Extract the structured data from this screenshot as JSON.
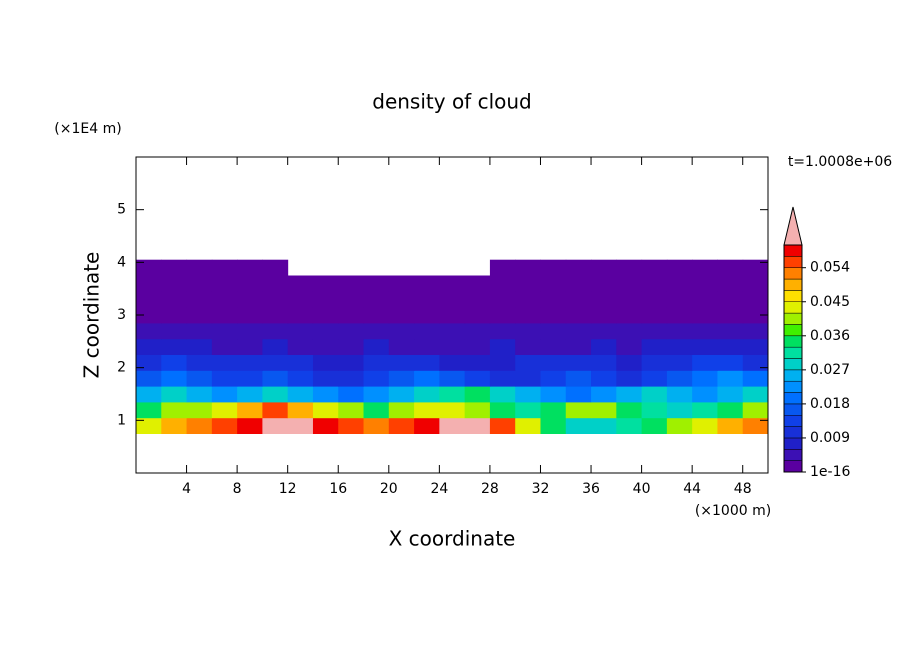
{
  "chart_data": {
    "type": "contour",
    "title": "density of cloud",
    "xlabel": "X coordinate",
    "ylabel": "Z coordinate",
    "x_unit": "(×1000 m)",
    "y_unit": "(×1E4 m)",
    "time_label": "t=1.0008e+06",
    "xlim": [
      0,
      50
    ],
    "ylim": [
      0,
      6
    ],
    "xticks": [
      4,
      8,
      12,
      16,
      20,
      24,
      28,
      32,
      36,
      40,
      44,
      48
    ],
    "yticks": [
      1,
      2,
      3,
      4,
      5
    ],
    "x": [
      1,
      3,
      5,
      7,
      9,
      11,
      13,
      15,
      17,
      19,
      21,
      23,
      25,
      27,
      29,
      31,
      33,
      35,
      37,
      39,
      41,
      43,
      45,
      47,
      49
    ],
    "y": [
      0.9,
      1.2,
      1.5,
      1.8,
      2.1,
      2.4,
      2.7,
      3.0,
      3.3,
      3.6,
      3.9
    ],
    "z": [
      [
        0.045,
        0.05,
        0.052,
        0.054,
        0.058,
        0.062,
        0.062,
        0.058,
        0.055,
        0.052,
        0.054,
        0.058,
        0.062,
        0.062,
        0.055,
        0.045,
        0.036,
        0.03,
        0.03,
        0.033,
        0.036,
        0.04,
        0.045,
        0.05,
        0.052
      ],
      [
        0.036,
        0.04,
        0.042,
        0.045,
        0.05,
        0.054,
        0.05,
        0.045,
        0.04,
        0.036,
        0.04,
        0.045,
        0.045,
        0.04,
        0.036,
        0.033,
        0.036,
        0.04,
        0.042,
        0.036,
        0.033,
        0.03,
        0.033,
        0.036,
        0.04
      ],
      [
        0.027,
        0.03,
        0.027,
        0.024,
        0.027,
        0.03,
        0.027,
        0.024,
        0.021,
        0.024,
        0.027,
        0.03,
        0.033,
        0.036,
        0.03,
        0.027,
        0.024,
        0.021,
        0.024,
        0.027,
        0.03,
        0.027,
        0.024,
        0.027,
        0.03
      ],
      [
        0.018,
        0.02,
        0.018,
        0.015,
        0.015,
        0.018,
        0.015,
        0.012,
        0.012,
        0.015,
        0.018,
        0.021,
        0.018,
        0.015,
        0.012,
        0.012,
        0.015,
        0.018,
        0.015,
        0.012,
        0.015,
        0.018,
        0.021,
        0.024,
        0.021
      ],
      [
        0.012,
        0.015,
        0.012,
        0.01,
        0.012,
        0.012,
        0.01,
        0.008,
        0.009,
        0.01,
        0.012,
        0.01,
        0.009,
        0.008,
        0.009,
        0.01,
        0.012,
        0.012,
        0.01,
        0.009,
        0.01,
        0.012,
        0.015,
        0.015,
        0.012
      ],
      [
        0.007,
        0.008,
        0.007,
        0.006,
        0.006,
        0.007,
        0.006,
        0.005,
        0.006,
        0.007,
        0.006,
        0.005,
        0.005,
        0.006,
        0.007,
        0.006,
        0.005,
        0.006,
        0.007,
        0.006,
        0.007,
        0.008,
        0.009,
        0.008,
        0.007
      ],
      [
        0.004,
        0.005,
        0.004,
        0.004,
        0.004,
        0.005,
        0.004,
        0.004,
        0.005,
        0.005,
        0.004,
        0.004,
        0.004,
        0.005,
        0.004,
        0.004,
        0.004,
        0.005,
        0.005,
        0.004,
        0.004,
        0.005,
        0.005,
        0.005,
        0.004
      ],
      [
        0.003,
        0.002,
        0.003,
        0.002,
        0.002,
        0.003,
        0.002,
        0.002,
        0.003,
        0.002,
        0.002,
        0.003,
        0.002,
        0.002,
        0.003,
        0.002,
        0.002,
        0.003,
        0.003,
        0.002,
        0.002,
        0.003,
        0.003,
        0.003,
        0.002
      ],
      [
        0.002,
        0.002,
        0.002,
        0.002,
        0.002,
        0.002,
        0.002,
        0.002,
        0.002,
        0.002,
        0.002,
        0.002,
        0.002,
        0.002,
        0.002,
        0.002,
        0.002,
        0.002,
        0.002,
        0.002,
        0.002,
        0.002,
        0.002,
        0.002,
        0.002
      ],
      [
        0.001,
        0.001,
        0.001,
        0.001,
        0.001,
        0.001,
        0.001,
        0.001,
        0.001,
        0.001,
        0.001,
        0.001,
        0.001,
        0.001,
        0.001,
        0.001,
        0.001,
        0.001,
        0.001,
        0.001,
        0.001,
        0.001,
        0.001,
        0.001,
        0.001
      ],
      [
        0.0005,
        0.0005,
        0.0005,
        0.0005,
        0.0005,
        0.0005,
        null,
        null,
        null,
        null,
        null,
        null,
        null,
        null,
        0.0005,
        0.0005,
        0.0005,
        0.0005,
        0.0005,
        0.0005,
        0.0005,
        0.0005,
        0.0005,
        0.0005,
        0.0005
      ]
    ],
    "colorbar": {
      "lim": [
        1e-16,
        0.06
      ],
      "ticks": [
        1e-16,
        0.009,
        0.018,
        0.027,
        0.036,
        0.045,
        0.054
      ],
      "colors": [
        "#5a00a0",
        "#3c10b4",
        "#2020c8",
        "#1830d8",
        "#1040e8",
        "#0858f0",
        "#0070ff",
        "#0090ff",
        "#00b0f0",
        "#00d0c8",
        "#00e0a0",
        "#00e060",
        "#40f000",
        "#a0f000",
        "#e0f000",
        "#ffe000",
        "#ffb000",
        "#ff8000",
        "#ff4000",
        "#f00000"
      ],
      "extend_color": "#f4b0b0"
    }
  }
}
